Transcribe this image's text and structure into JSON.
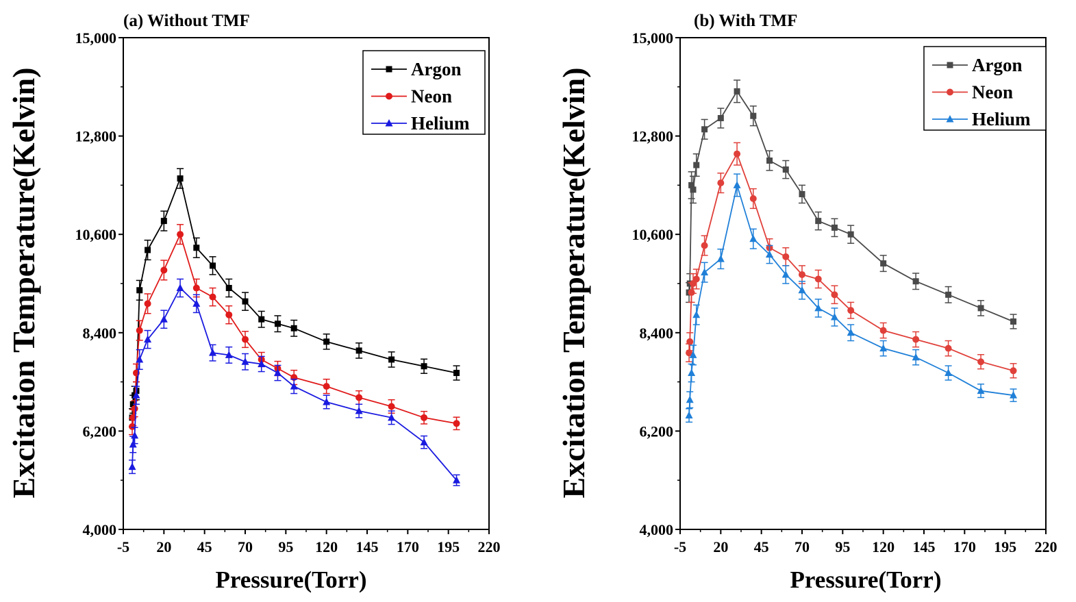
{
  "chart_data": [
    {
      "type": "line",
      "title": "(a) Without TMF",
      "xlabel": "Pressure(Torr)",
      "ylabel": "Excitation Temperature(Kelvin)",
      "xlim": [
        -5,
        220
      ],
      "ylim": [
        4000,
        15000
      ],
      "xticks": [
        -5,
        20,
        45,
        70,
        95,
        120,
        145,
        170,
        195,
        220
      ],
      "xtick_labels": [
        "-5",
        "20",
        "45",
        "70",
        "95",
        "120",
        "145",
        "170",
        "195",
        "220"
      ],
      "yticks": [
        4000,
        6200,
        8400,
        10600,
        12800,
        15000
      ],
      "ytick_labels": [
        "4,000",
        "6,200",
        "8,400",
        "10,600",
        "12,800",
        "15,000"
      ],
      "legend_position": "top-right",
      "x": [
        0.5,
        1,
        2,
        3,
        5,
        10,
        20,
        30,
        40,
        50,
        60,
        70,
        80,
        90,
        100,
        120,
        140,
        160,
        180,
        200
      ],
      "series": [
        {
          "name": "Argon",
          "color": "#000000",
          "marker": "square",
          "values": [
            6500,
            6800,
            7000,
            7100,
            9350,
            10250,
            10900,
            11850,
            10300,
            9900,
            9400,
            9100,
            8700,
            8600,
            8500,
            8200,
            8000,
            7800,
            7650,
            7500
          ],
          "errors": [
            200,
            200,
            200,
            200,
            220,
            220,
            220,
            220,
            220,
            200,
            200,
            200,
            180,
            180,
            180,
            170,
            170,
            170,
            160,
            160
          ]
        },
        {
          "name": "Neon",
          "color": "#e01b1b",
          "marker": "circle",
          "values": [
            6300,
            6500,
            6700,
            7500,
            8450,
            9050,
            9800,
            10600,
            9400,
            9200,
            8800,
            8250,
            7800,
            7600,
            7400,
            7200,
            6950,
            6750,
            6500,
            6370
          ],
          "errors": [
            180,
            180,
            180,
            200,
            220,
            220,
            220,
            220,
            200,
            200,
            200,
            180,
            160,
            160,
            160,
            160,
            150,
            150,
            140,
            140
          ]
        },
        {
          "name": "Helium",
          "color": "#1a1ae0",
          "marker": "triangle",
          "values": [
            5400,
            5900,
            6100,
            7000,
            7800,
            8250,
            8700,
            9400,
            9050,
            7950,
            7900,
            7750,
            7700,
            7500,
            7200,
            6850,
            6650,
            6500,
            5950,
            5100
          ],
          "errors": [
            150,
            180,
            180,
            200,
            220,
            200,
            200,
            200,
            200,
            180,
            180,
            180,
            170,
            170,
            160,
            150,
            150,
            150,
            140,
            120
          ]
        }
      ]
    },
    {
      "type": "line",
      "title": "(b) With TMF",
      "xlabel": "Pressure(Torr)",
      "ylabel": "Excitation Temperature(Kelvin)",
      "xlim": [
        -5,
        220
      ],
      "ylim": [
        4000,
        15000
      ],
      "xticks": [
        -5,
        20,
        45,
        70,
        95,
        120,
        145,
        170,
        195,
        220
      ],
      "xtick_labels": [
        "-5",
        "20",
        "45",
        "70",
        "95",
        "120",
        "145",
        "170",
        "195",
        "220"
      ],
      "yticks": [
        4000,
        6200,
        8400,
        10600,
        12800,
        15000
      ],
      "ytick_labels": [
        "4,000",
        "6,200",
        "8,400",
        "10,600",
        "12,800",
        "15,000"
      ],
      "legend_position": "top-right",
      "x": [
        0.5,
        1,
        2,
        3,
        5,
        10,
        20,
        30,
        40,
        50,
        60,
        70,
        80,
        90,
        100,
        120,
        140,
        160,
        180,
        200
      ],
      "series": [
        {
          "name": "Argon",
          "color": "#4a4a4a",
          "marker": "square",
          "values": [
            9300,
            9500,
            11700,
            11600,
            12150,
            12950,
            13200,
            13800,
            13250,
            12250,
            12050,
            11500,
            10900,
            10750,
            10600,
            9950,
            9550,
            9250,
            8950,
            8650
          ],
          "errors": [
            220,
            220,
            300,
            300,
            250,
            220,
            220,
            250,
            220,
            220,
            200,
            200,
            200,
            200,
            200,
            180,
            180,
            180,
            170,
            160
          ]
        },
        {
          "name": "Neon",
          "color": "#e0403a",
          "marker": "circle",
          "values": [
            7950,
            8200,
            9300,
            9500,
            9600,
            10350,
            11750,
            12400,
            11400,
            10300,
            10100,
            9700,
            9600,
            9250,
            8900,
            8450,
            8250,
            8050,
            7750,
            7550
          ],
          "errors": [
            200,
            200,
            220,
            220,
            220,
            220,
            220,
            250,
            220,
            200,
            200,
            200,
            200,
            200,
            180,
            170,
            170,
            170,
            160,
            160
          ]
        },
        {
          "name": "Helium",
          "color": "#2080d8",
          "marker": "triangle",
          "values": [
            6550,
            6900,
            7500,
            7900,
            8800,
            9750,
            10050,
            11700,
            10500,
            10150,
            9700,
            9350,
            8950,
            8750,
            8400,
            8050,
            7850,
            7500,
            7100,
            7000
          ],
          "errors": [
            150,
            180,
            200,
            220,
            220,
            220,
            220,
            250,
            220,
            200,
            200,
            200,
            200,
            200,
            180,
            170,
            170,
            160,
            150,
            140
          ]
        }
      ]
    }
  ]
}
